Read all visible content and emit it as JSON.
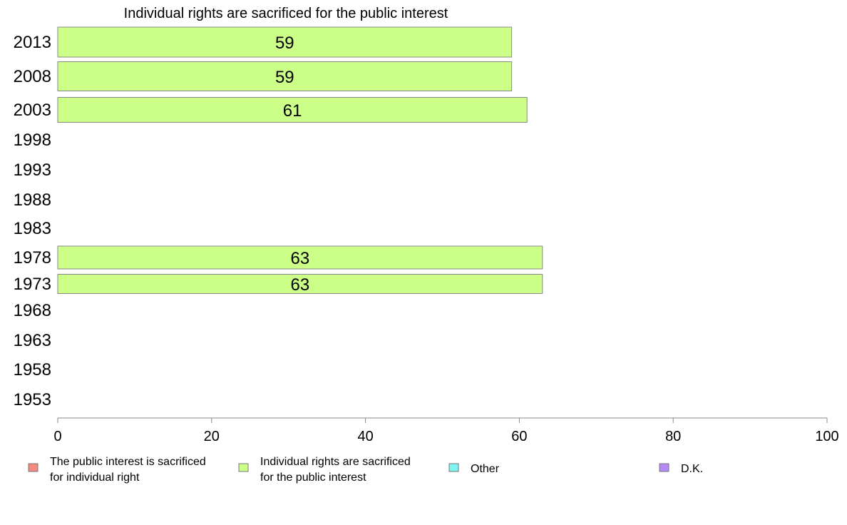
{
  "chart_data": {
    "type": "bar",
    "orientation": "horizontal",
    "title": "Individual rights are sacrificed for the public interest",
    "categories": [
      "2013",
      "2008",
      "2003",
      "1998",
      "1993",
      "1988",
      "1983",
      "1978",
      "1973",
      "1968",
      "1963",
      "1958",
      "1953"
    ],
    "series": [
      {
        "name": "Individual rights are sacrificed for the public interest",
        "values": [
          59,
          59,
          61,
          null,
          null,
          null,
          null,
          63,
          63,
          null,
          null,
          null,
          null
        ]
      }
    ],
    "data_labels": [
      "59",
      "59",
      "61",
      "",
      "",
      "",
      "",
      "63",
      "63",
      "",
      "",
      "",
      ""
    ],
    "xlim": [
      0,
      100
    ],
    "xticks": [
      "0",
      "20",
      "40",
      "60",
      "80",
      "100"
    ],
    "grid": false,
    "bar_color": "#ccff88",
    "bar_edge_color": "#888888",
    "legend_position": "bottom",
    "legend": [
      {
        "lines": [
          "The public interest is sacrificed",
          "for individual right"
        ],
        "color": "#f48a82"
      },
      {
        "lines": [
          "Individual rights are sacrificed",
          "for the public interest"
        ],
        "color": "#ccff88"
      },
      {
        "lines": [
          "Other"
        ],
        "color": "#7ef5f2"
      },
      {
        "lines": [
          "D.K."
        ],
        "color": "#b58af7"
      }
    ]
  }
}
